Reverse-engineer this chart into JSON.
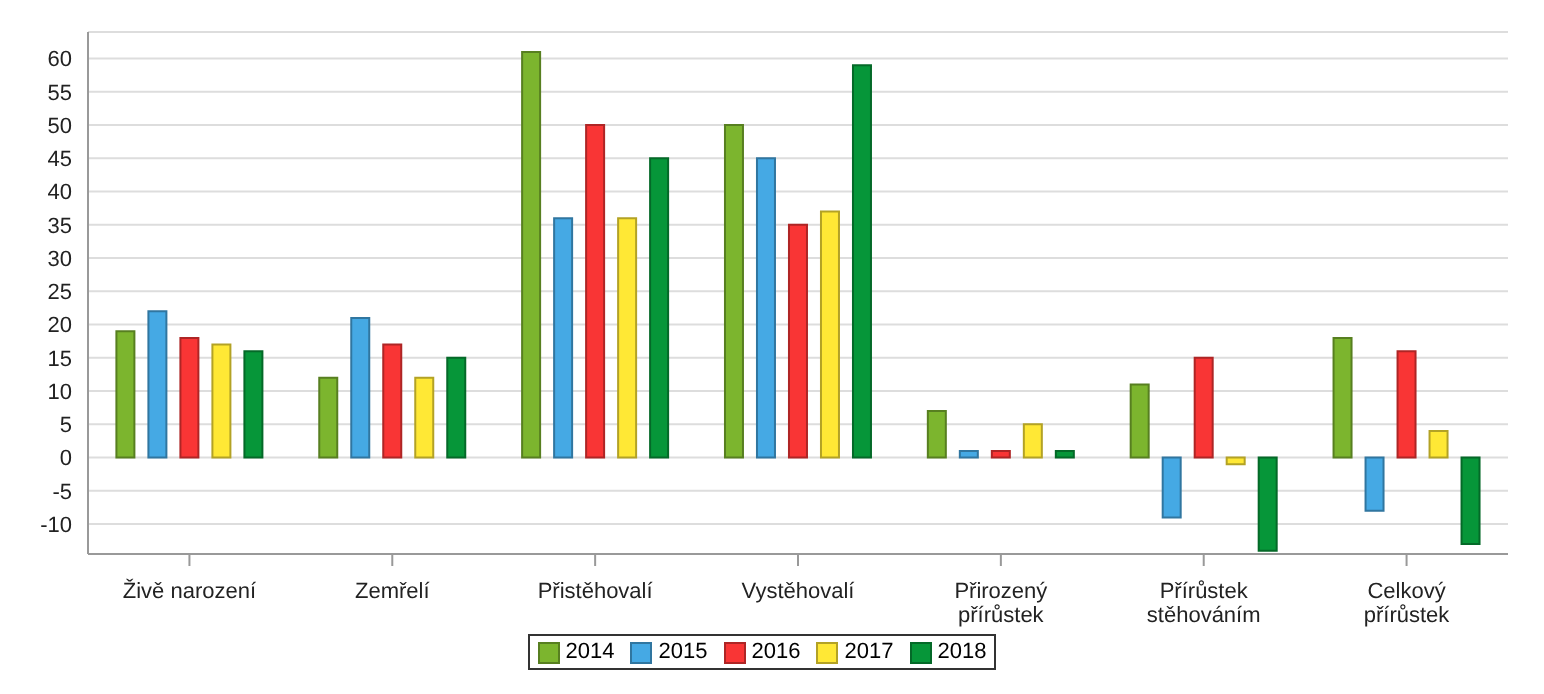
{
  "chart_data": {
    "type": "bar",
    "categories": [
      "Živě narození",
      "Zemřelí",
      "Přistěhovalí",
      "Vystěhovalí",
      "Přirozený přírůstek",
      "Přírůstek stěhováním",
      "Celkový přírůstek"
    ],
    "series": [
      {
        "name": "2014",
        "color": "#7cb52e",
        "values": [
          19,
          12,
          61,
          50,
          7,
          11,
          18
        ]
      },
      {
        "name": "2015",
        "color": "#45a9e4",
        "values": [
          22,
          21,
          36,
          45,
          1,
          -9,
          -8
        ]
      },
      {
        "name": "2016",
        "color": "#f93535",
        "values": [
          18,
          17,
          50,
          35,
          1,
          15,
          16
        ]
      },
      {
        "name": "2017",
        "color": "#ffe835",
        "values": [
          17,
          12,
          36,
          37,
          5,
          -1,
          4
        ]
      },
      {
        "name": "2018",
        "color": "#069639",
        "values": [
          16,
          15,
          45,
          59,
          1,
          -14,
          -13
        ]
      }
    ],
    "ylim": [
      -14.5,
      64
    ],
    "yticks": [
      -10,
      -5,
      0,
      5,
      10,
      15,
      20,
      25,
      30,
      35,
      40,
      45,
      50,
      55,
      60
    ],
    "grid": "y",
    "legend": "bottom"
  }
}
